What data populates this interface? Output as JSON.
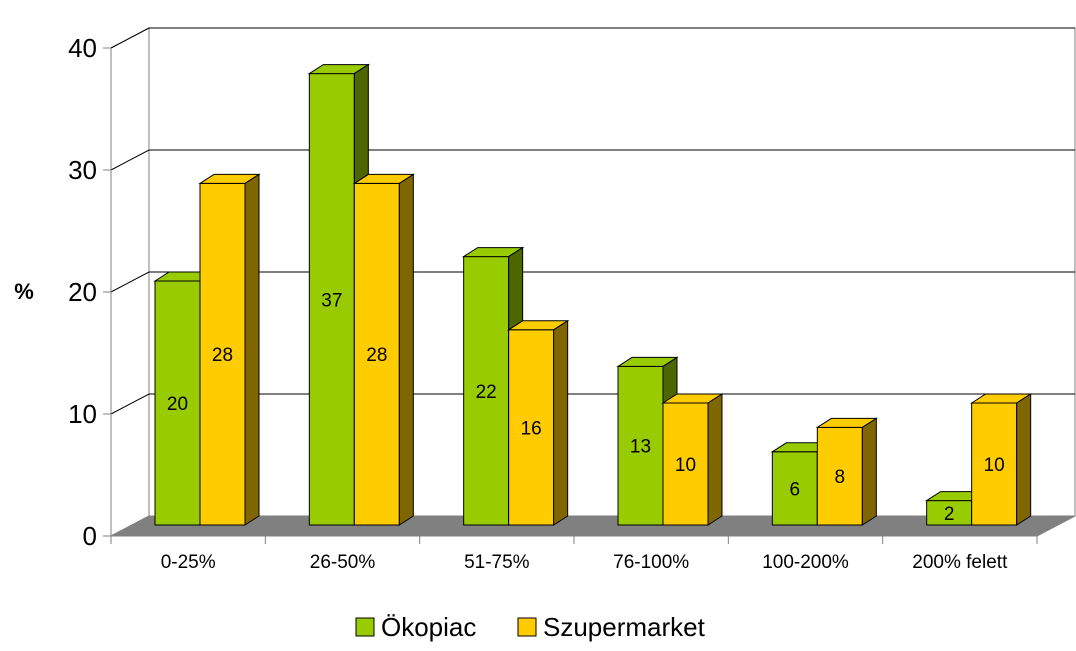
{
  "chart_data": {
    "type": "bar",
    "style": "3d-clustered-column",
    "categories": [
      "0-25%",
      "26-50%",
      "51-75%",
      "76-100%",
      "100-200%",
      "200% felett"
    ],
    "series": [
      {
        "name": "Ökopiac",
        "values": [
          20,
          37,
          22,
          13,
          6,
          2
        ],
        "color": "#99CC00",
        "shade_color": "#4D6600",
        "edge_color": "#000000"
      },
      {
        "name": "Szupermarket",
        "values": [
          28,
          28,
          16,
          10,
          8,
          10
        ],
        "color": "#FFCC00",
        "shade_color": "#806600",
        "edge_color": "#000000"
      }
    ],
    "data_labels": {
      "Ökopiac": [
        "20",
        "37",
        "22",
        "13",
        "6",
        "2"
      ],
      "Szupermarket": [
        "28",
        "28",
        "16",
        "10",
        "8",
        "10"
      ]
    },
    "ylabel": "%",
    "yticks": [
      "0",
      "10",
      "20",
      "30",
      "40"
    ],
    "ylim": [
      0,
      40
    ],
    "grid": true,
    "floor_color": "#808080",
    "legend_position": "bottom"
  }
}
